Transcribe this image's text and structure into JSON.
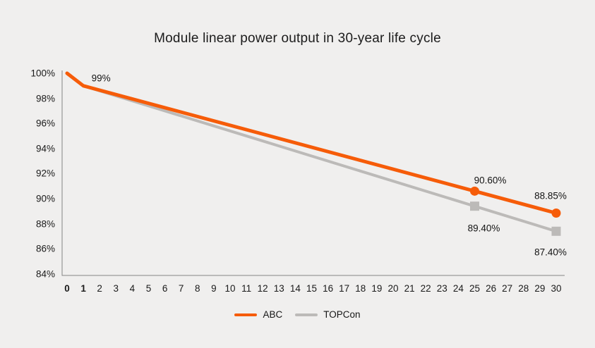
{
  "title": "Module linear power output in 30-year life cycle",
  "colors": {
    "background": "#f0efee",
    "abc_orange": "#f65c09",
    "topcon_gray": "#bcbab8",
    "axis": "#848484",
    "text": "#1a1a1a"
  },
  "legend": {
    "position": "bottom-center",
    "items": [
      {
        "label": "ABC",
        "color": "#f65c09",
        "marker": "circle"
      },
      {
        "label": "TOPCon",
        "color": "#bcbab8",
        "marker": "square"
      }
    ]
  },
  "chart_data": {
    "type": "line",
    "title": "Module linear power output in 30-year life cycle",
    "xlabel": "",
    "ylabel": "",
    "xlim": [
      0,
      30
    ],
    "ylim": [
      84,
      100
    ],
    "grid": false,
    "xticks": [
      0,
      1,
      2,
      3,
      4,
      5,
      6,
      7,
      8,
      9,
      10,
      11,
      12,
      13,
      14,
      15,
      16,
      17,
      18,
      19,
      20,
      21,
      22,
      23,
      24,
      25,
      26,
      27,
      28,
      29,
      30
    ],
    "emphasized_xticks": [
      0,
      1
    ],
    "ytick_labels": [
      "100%",
      "98%",
      "96%",
      "94%",
      "92%",
      "90%",
      "88%",
      "86%",
      "84%"
    ],
    "ytick_values": [
      100,
      98,
      96,
      94,
      92,
      90,
      88,
      86,
      84
    ],
    "series": [
      {
        "name": "ABC",
        "color": "#f65c09",
        "line_width": 5,
        "marker": "circle",
        "marker_years": [
          25,
          30
        ],
        "points": [
          [
            0,
            100
          ],
          [
            1,
            99
          ],
          [
            25,
            90.6
          ],
          [
            30,
            88.85
          ]
        ]
      },
      {
        "name": "TOPCon",
        "color": "#bcbab8",
        "line_width": 4,
        "marker": "square",
        "marker_years": [
          25,
          30
        ],
        "points": [
          [
            0,
            100
          ],
          [
            1,
            99
          ],
          [
            25,
            89.4
          ],
          [
            30,
            87.4
          ]
        ]
      }
    ],
    "annotations": [
      {
        "text": "99%",
        "x": 1,
        "y": 99,
        "offset": [
          25,
          -11
        ]
      },
      {
        "text": "90.60%",
        "x": 25,
        "y": 90.6,
        "offset": [
          22,
          -15
        ]
      },
      {
        "text": "88.85%",
        "x": 30,
        "y": 88.85,
        "offset": [
          -8,
          -24
        ]
      },
      {
        "text": "89.40%",
        "x": 25,
        "y": 89.4,
        "offset": [
          13,
          31
        ]
      },
      {
        "text": "87.40%",
        "x": 30,
        "y": 87.4,
        "offset": [
          -8,
          30
        ]
      }
    ]
  }
}
